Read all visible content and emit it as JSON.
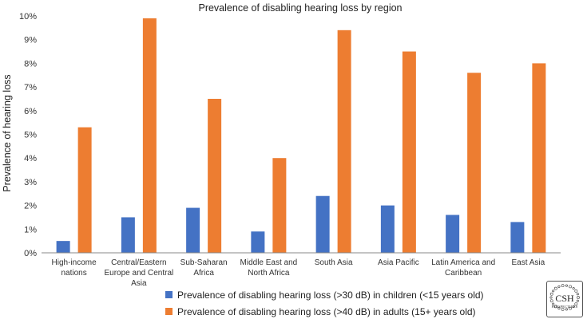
{
  "chart_data": {
    "type": "bar",
    "title": "Prevalence of disabling hearing loss by region",
    "xlabel": "",
    "ylabel": "Prevalence of hearing loss",
    "ylim": [
      0,
      10
    ],
    "yticks": [
      "0%",
      "1%",
      "2%",
      "3%",
      "4%",
      "5%",
      "6%",
      "7%",
      "8%",
      "9%",
      "10%"
    ],
    "grid": false,
    "legend_position": "bottom",
    "categories": [
      [
        "High-income",
        "nations"
      ],
      [
        "Central/Eastern",
        "Europe and Central",
        "Asia"
      ],
      [
        "Sub-Saharan",
        "Africa"
      ],
      [
        "Middle East and",
        "North Africa"
      ],
      [
        "South Asia"
      ],
      [
        "Asia Pacific"
      ],
      [
        "Latin America and",
        "Caribbean"
      ],
      [
        "East Asia"
      ]
    ],
    "series": [
      {
        "name": "Prevalence of disabling hearing loss (>30 dB) in children (<15 years old)",
        "color": "#4472c4",
        "values": [
          0.5,
          1.5,
          1.9,
          0.9,
          2.4,
          2.0,
          1.6,
          1.3
        ]
      },
      {
        "name": "Prevalence of disabling hearing loss (>40 dB) in adults (15+ years old)",
        "color": "#ed7d31",
        "values": [
          5.3,
          9.9,
          6.5,
          4.0,
          9.4,
          8.5,
          7.6,
          8.0
        ]
      }
    ]
  },
  "logo": {
    "text": "CSH",
    "subtext": "PERSPECTIVES",
    "icon": "csh-perspectives-logo-icon"
  }
}
